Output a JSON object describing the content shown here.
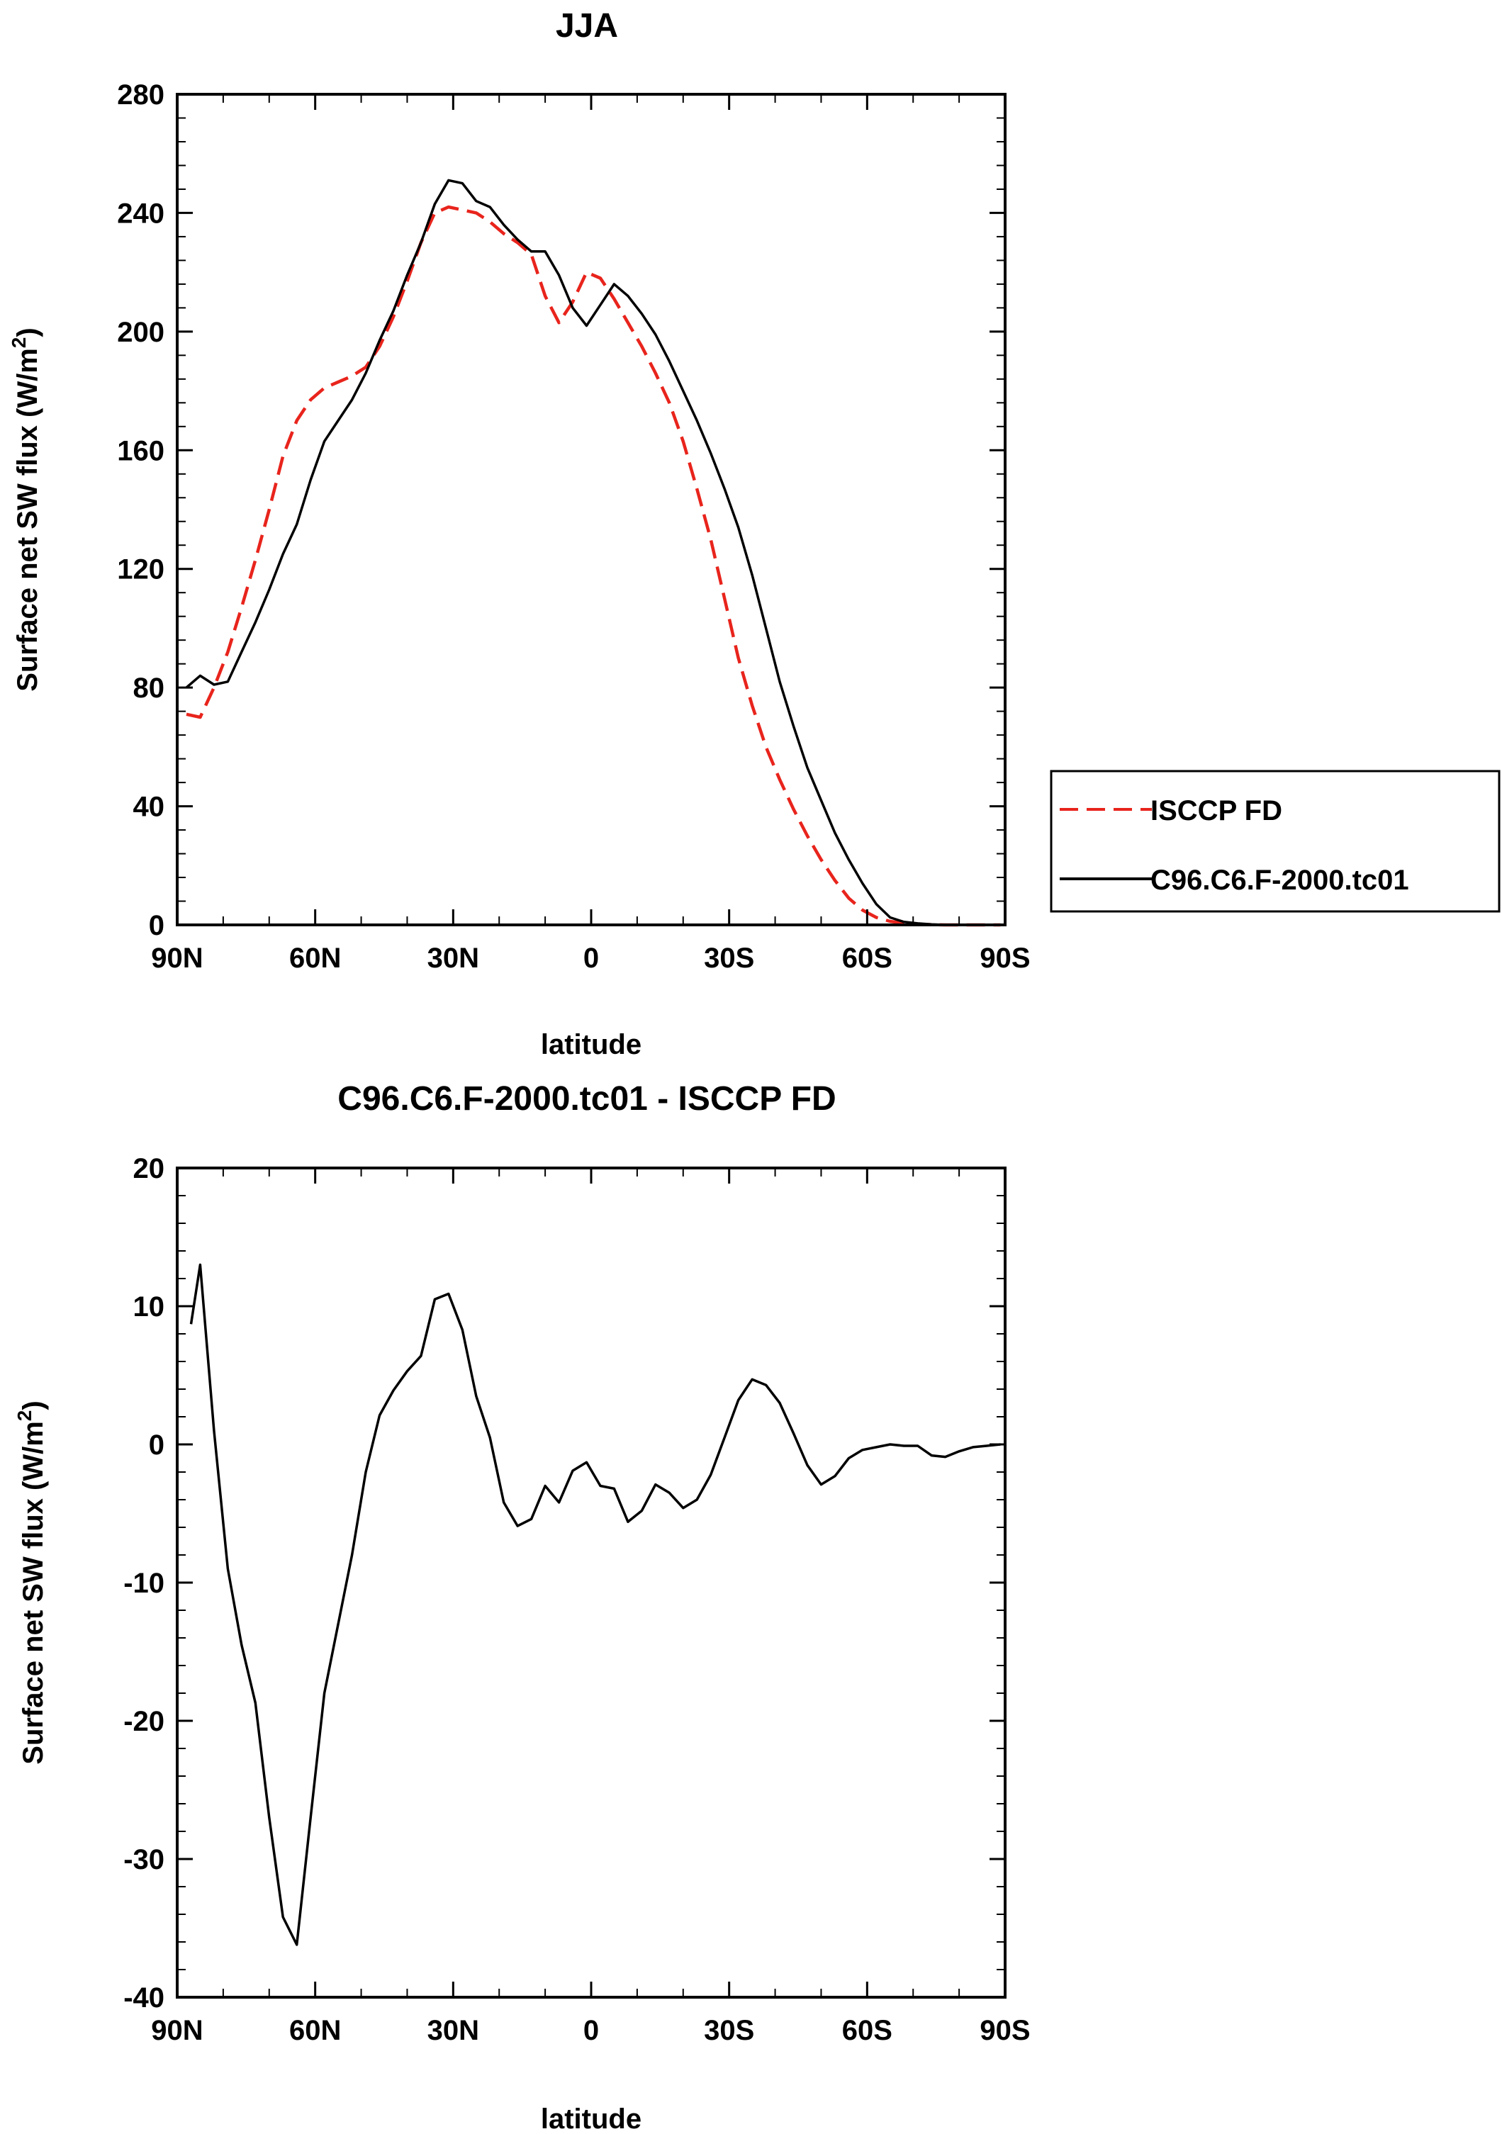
{
  "colors": {
    "obs": "#e8241c",
    "model": "#000000",
    "frame": "#000000"
  },
  "legend": [
    {
      "label": "ISCCP FD",
      "color": "#e8241c",
      "dash": true
    },
    {
      "label": "C96.C6.F-2000.tc01",
      "color": "#000000",
      "dash": false
    }
  ],
  "chart_data": [
    {
      "type": "line",
      "title": "JJA",
      "xlabel": "latitude",
      "ylabel_main": "Surface net SW flux (W/m",
      "ylabel_sup": "2",
      "ylabel_close": ")",
      "xlim": [
        90,
        -90
      ],
      "ylim": [
        0,
        280
      ],
      "xticks": [
        90,
        60,
        30,
        0,
        -30,
        -60,
        -90
      ],
      "xtick_labels": [
        "90N",
        "60N",
        "30N",
        "0",
        "30S",
        "60S",
        "90S"
      ],
      "yticks": [
        0,
        40,
        80,
        120,
        160,
        200,
        240,
        280
      ],
      "ytick_labels": [
        "0",
        "40",
        "80",
        "120",
        "160",
        "200",
        "240",
        "280"
      ],
      "series": [
        {
          "name": "ISCCP FD",
          "dash": true,
          "x": [
            88,
            85,
            82,
            79,
            76,
            73,
            70,
            67,
            64,
            61,
            58,
            55,
            52,
            49,
            46,
            43,
            40,
            37,
            34,
            31,
            28,
            25,
            22,
            19,
            16,
            13,
            10,
            7,
            4,
            1,
            -2,
            -5,
            -8,
            -11,
            -14,
            -17,
            -20,
            -23,
            -26,
            -29,
            -32,
            -35,
            -38,
            -41,
            -44,
            -47,
            -50,
            -53,
            -56,
            -59,
            -62,
            -65,
            -68,
            -71,
            -74,
            -77,
            -80,
            -83,
            -86,
            -89
          ],
          "y": [
            71,
            70,
            80,
            92,
            107,
            123,
            140,
            158,
            170,
            177,
            181,
            183,
            185,
            188,
            195,
            205,
            217,
            230,
            240,
            242,
            241,
            240,
            237,
            233,
            230,
            226,
            212,
            203,
            210,
            220,
            218,
            211,
            203,
            195,
            186,
            176,
            163,
            147,
            130,
            110,
            90,
            74,
            60,
            49,
            39,
            30,
            22,
            15,
            9,
            5,
            2.5,
            1.2,
            0.6,
            0.2,
            0.1,
            0,
            0,
            0,
            0,
            0
          ]
        },
        {
          "name": "C96.C6.F-2000.tc01",
          "dash": false,
          "x": [
            88,
            85,
            82,
            79,
            76,
            73,
            70,
            67,
            64,
            61,
            58,
            55,
            52,
            49,
            46,
            43,
            40,
            37,
            34,
            31,
            28,
            25,
            22,
            19,
            16,
            13,
            10,
            7,
            4,
            1,
            -2,
            -5,
            -8,
            -11,
            -14,
            -17,
            -20,
            -23,
            -26,
            -29,
            -32,
            -35,
            -38,
            -41,
            -44,
            -47,
            -50,
            -53,
            -56,
            -59,
            -62,
            -65,
            -68,
            -71,
            -74,
            -77,
            -80,
            -83,
            -86,
            -89
          ],
          "y": [
            80,
            84,
            81,
            82,
            92,
            102,
            113,
            125,
            135,
            150,
            163,
            170,
            177,
            186,
            197,
            207,
            219,
            230,
            243,
            251,
            250,
            244,
            242,
            236,
            231,
            227,
            227,
            219,
            208,
            202,
            209,
            216,
            212,
            206,
            199,
            190,
            180,
            170,
            159,
            147,
            134,
            118,
            100,
            82,
            67,
            53,
            42,
            31,
            22,
            14,
            7,
            2.5,
            1,
            0.5,
            0.2,
            0,
            0,
            0,
            0,
            0
          ]
        }
      ]
    },
    {
      "type": "line",
      "title": "C96.C6.F-2000.tc01 - ISCCP FD",
      "xlabel": "latitude",
      "ylabel_main": "Surface net SW flux (W/m",
      "ylabel_sup": "2",
      "ylabel_close": ")",
      "xlim": [
        90,
        -90
      ],
      "ylim": [
        -40,
        20
      ],
      "xticks": [
        90,
        60,
        30,
        0,
        -30,
        -60,
        -90
      ],
      "xtick_labels": [
        "90N",
        "60N",
        "30N",
        "0",
        "30S",
        "60S",
        "90S"
      ],
      "yticks": [
        -40,
        -30,
        -20,
        -10,
        0,
        10,
        20
      ],
      "ytick_labels": [
        "-40",
        "-30",
        "-20",
        "-10",
        "0",
        "10",
        "20"
      ],
      "series": [
        {
          "name": "C96.C6.F-2000.tc01 - ISCCP FD",
          "dash": false,
          "x": [
            87,
            85,
            82,
            79,
            76,
            73,
            70,
            67,
            64,
            61,
            58,
            55,
            52,
            49,
            46,
            43,
            40,
            37,
            34,
            31,
            28,
            25,
            22,
            19,
            16,
            13,
            10,
            7,
            4,
            1,
            -2,
            -5,
            -8,
            -11,
            -14,
            -17,
            -20,
            -23,
            -26,
            -29,
            -32,
            -35,
            -38,
            -41,
            -44,
            -47,
            -50,
            -53,
            -56,
            -59,
            -62,
            -65,
            -68,
            -71,
            -74,
            -77,
            -80,
            -83,
            -86,
            -89
          ],
          "y": [
            8.7,
            13,
            1,
            -9,
            -14.5,
            -18.7,
            -27,
            -34.2,
            -36.2,
            -27,
            -18,
            -13,
            -8,
            -2,
            2.1,
            3.9,
            5.3,
            6.4,
            10.5,
            10.9,
            8.3,
            3.5,
            0.5,
            -4.2,
            -5.9,
            -5.4,
            -3,
            -4.2,
            -1.9,
            -1.3,
            -3,
            -3.2,
            -5.6,
            -4.8,
            -2.9,
            -3.5,
            -4.6,
            -4,
            -2.2,
            0.5,
            3.2,
            4.7,
            4.3,
            3,
            0.8,
            -1.5,
            -2.9,
            -2.3,
            -1,
            -0.4,
            -0.2,
            0,
            -0.1,
            -0.1,
            -0.8,
            -0.9,
            -0.5,
            -0.2,
            -0.1,
            0
          ]
        }
      ]
    }
  ]
}
